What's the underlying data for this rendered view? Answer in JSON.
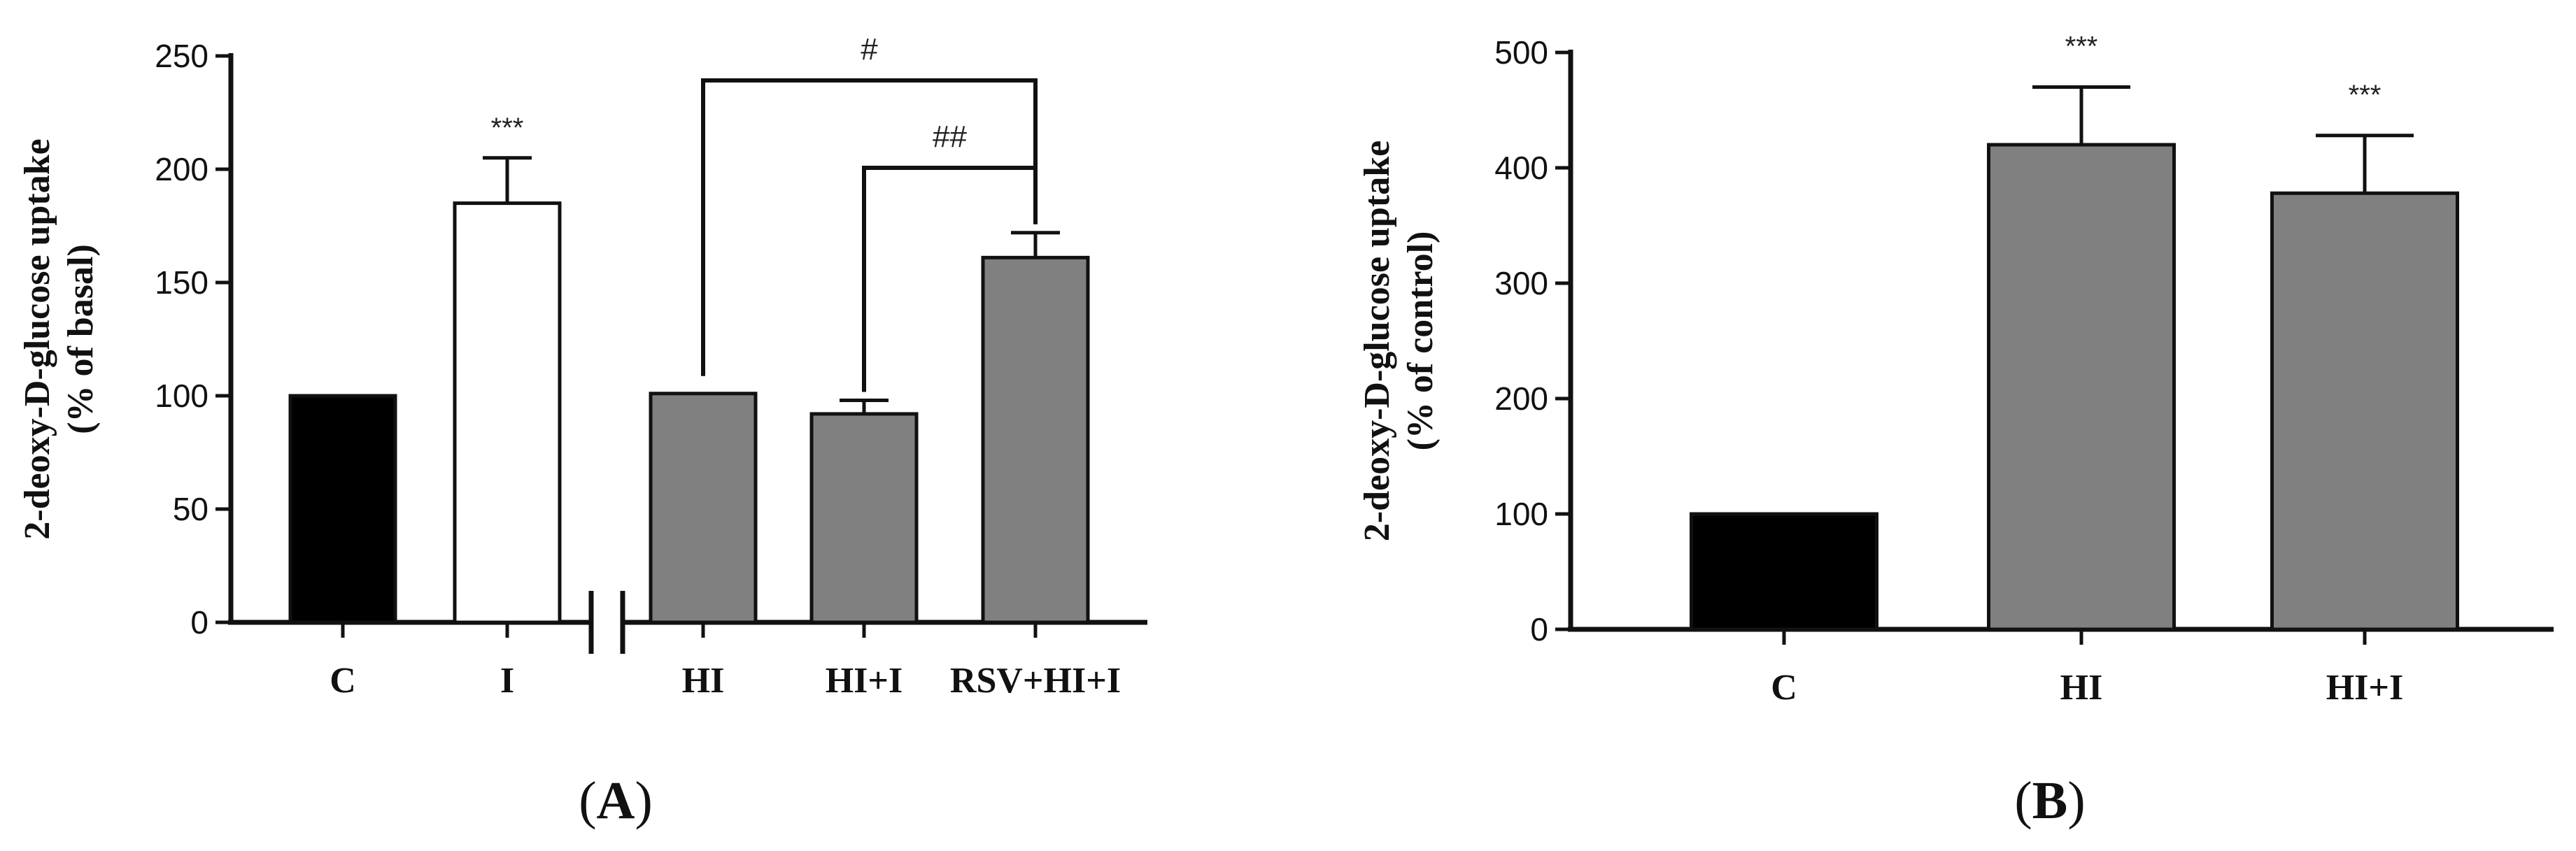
{
  "chart_data": [
    {
      "panel": "A",
      "type": "bar",
      "ylabel": [
        "2-deoxy-D-glucose uptake",
        "(% of basal)"
      ],
      "ylim": [
        0,
        250
      ],
      "yticks": [
        0,
        50,
        100,
        150,
        200,
        250
      ],
      "categories": [
        "C",
        "I",
        "HI",
        "HI+I",
        "RSV+HI+I"
      ],
      "values": [
        100,
        185,
        101,
        92,
        161
      ],
      "errors": [
        0,
        20,
        0,
        6,
        11
      ],
      "fills": [
        "#000000",
        "#ffffff",
        "#808080",
        "#808080",
        "#808080"
      ],
      "significance": [
        "",
        "***",
        "",
        "",
        ""
      ],
      "axis_break_after_index": 1,
      "brackets": [
        {
          "from": "HI",
          "to": "RSV+HI+I",
          "label": "#"
        },
        {
          "from": "HI+I",
          "to": "RSV+HI+I",
          "label": "##"
        }
      ],
      "grid": false
    },
    {
      "panel": "B",
      "type": "bar",
      "ylabel": [
        "2-deoxy-D-glucose uptake",
        "(% of control)"
      ],
      "ylim": [
        0,
        500
      ],
      "yticks": [
        0,
        100,
        200,
        300,
        400,
        500
      ],
      "categories": [
        "C",
        "HI",
        "HI+I"
      ],
      "values": [
        100,
        420,
        378
      ],
      "errors": [
        0,
        50,
        50
      ],
      "fills": [
        "#000000",
        "#808080",
        "#808080"
      ],
      "significance": [
        "",
        "***",
        "***"
      ],
      "grid": false
    }
  ],
  "panels": {
    "a_label_open": "(",
    "a_label_letter": "A",
    "a_label_close": ")",
    "b_label_open": "(",
    "b_label_letter": "B",
    "b_label_close": ")"
  }
}
